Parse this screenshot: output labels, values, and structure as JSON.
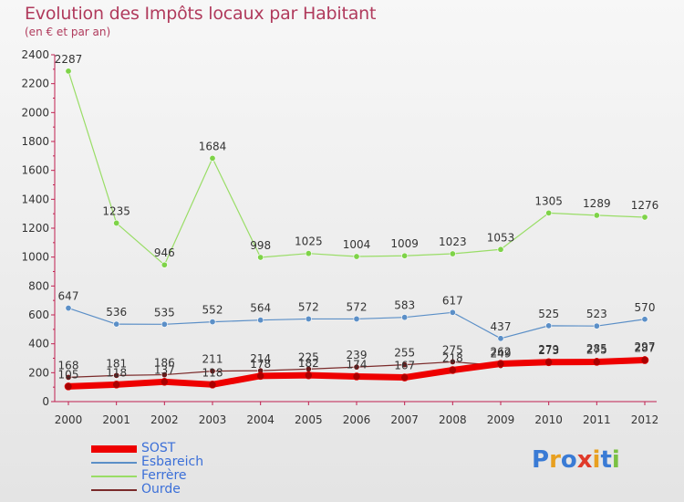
{
  "title": "Evolution des Impôts locaux par Habitant",
  "subtitle": "(en € et par an)",
  "logo": "Proxiti",
  "chart_data": {
    "type": "line",
    "title": "Evolution des Impôts locaux par Habitant",
    "subtitle": "(en € et par an)",
    "xlabel": "",
    "ylabel": "",
    "x": [
      "2000",
      "2001",
      "2002",
      "2003",
      "2004",
      "2005",
      "2006",
      "2007",
      "2008",
      "2009",
      "2010",
      "2011",
      "2012"
    ],
    "ylim": [
      0,
      2400
    ],
    "yticks": [
      0,
      200,
      400,
      600,
      800,
      1000,
      1200,
      1400,
      1600,
      1800,
      2000,
      2200,
      2400
    ],
    "grid": false,
    "legend_position": "bottom-left",
    "series": [
      {
        "name": "SOST",
        "color": "#ee0000",
        "values": [
          105,
          118,
          137,
          118,
          178,
          182,
          174,
          167,
          218,
          262,
          273,
          275,
          287
        ]
      },
      {
        "name": "Esbareich",
        "color": "#5b8fc7",
        "values": [
          647,
          536,
          535,
          552,
          564,
          572,
          572,
          583,
          617,
          437,
          525,
          523,
          570
        ]
      },
      {
        "name": "Ferrère",
        "color": "#99dd66",
        "values": [
          2287,
          1235,
          946,
          1684,
          998,
          1025,
          1004,
          1009,
          1023,
          1053,
          1305,
          1289,
          1276
        ]
      },
      {
        "name": "Ourde",
        "color": "#7a2a2a",
        "values": [
          168,
          181,
          186,
          211,
          214,
          225,
          239,
          255,
          275,
          249,
          279,
          285,
          297
        ]
      }
    ]
  }
}
